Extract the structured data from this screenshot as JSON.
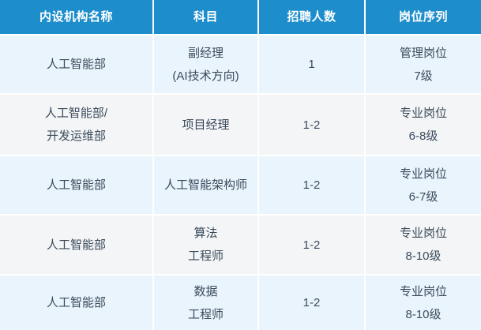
{
  "table": {
    "columns": [
      {
        "label": "内设机构名称"
      },
      {
        "label": "科目"
      },
      {
        "label": "招聘人数"
      },
      {
        "label": "岗位序列"
      }
    ],
    "rows": [
      {
        "department": [
          "人工智能部"
        ],
        "position": [
          "副经理",
          "(AI技术方向)"
        ],
        "headcount": [
          "1"
        ],
        "grade": [
          "管理岗位",
          "7级"
        ]
      },
      {
        "department": [
          "人工智能部/",
          "开发运维部"
        ],
        "position": [
          "项目经理"
        ],
        "headcount": [
          "1-2"
        ],
        "grade": [
          "专业岗位",
          "6-8级"
        ]
      },
      {
        "department": [
          "人工智能部"
        ],
        "position": [
          "人工智能架构师"
        ],
        "headcount": [
          "1-2"
        ],
        "grade": [
          "专业岗位",
          "6-7级"
        ]
      },
      {
        "department": [
          "人工智能部"
        ],
        "position": [
          "算法",
          "工程师"
        ],
        "headcount": [
          "1-2"
        ],
        "grade": [
          "专业岗位",
          "8-10级"
        ]
      },
      {
        "department": [
          "人工智能部"
        ],
        "position": [
          "数据",
          "工程师"
        ],
        "headcount": [
          "1-2"
        ],
        "grade": [
          "专业岗位",
          "8-10级"
        ]
      }
    ],
    "colors": {
      "header_bg": "#1d8dcc",
      "header_text": "#ffffff",
      "row_odd_bg": "#eaf4fc",
      "row_even_bg": "#f4f5f6",
      "body_text": "#3a4b5c",
      "divider": "#ffffff"
    }
  }
}
